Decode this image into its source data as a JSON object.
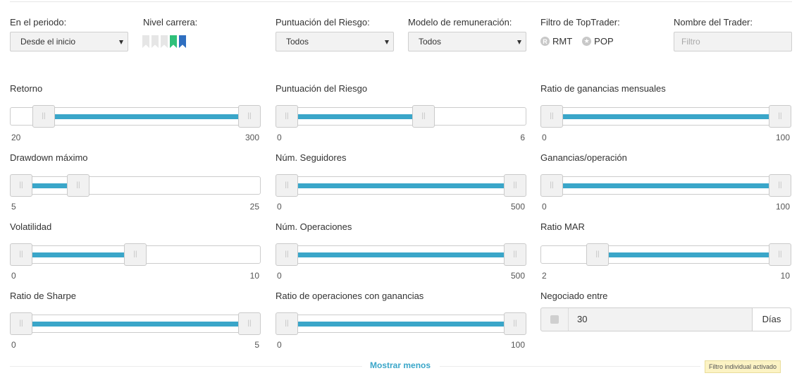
{
  "filters": {
    "period": {
      "label": "En el periodo:",
      "value": "Desde el inicio"
    },
    "career": {
      "label": "Nivel carrera:",
      "colors": [
        "#e6e6e6",
        "#e6e6e6",
        "#e6e6e6",
        "#2fc07a",
        "#2f6fc0"
      ]
    },
    "risk_score": {
      "label": "Puntuación del Riesgo:",
      "value": "Todos"
    },
    "remuneration": {
      "label": "Modelo de remuneración:",
      "value": "Todos"
    },
    "toptrader": {
      "label": "Filtro de TopTrader:",
      "options": [
        {
          "icon": "R",
          "label": "RMT"
        },
        {
          "icon": "★",
          "label": "POP"
        }
      ]
    },
    "trader_name": {
      "label": "Nombre del Trader:",
      "placeholder": "Filtro"
    }
  },
  "sliders": [
    {
      "label": "Retorno",
      "min": "20",
      "max": "300",
      "low": 0.1,
      "high": 1.0
    },
    {
      "label": "Puntuación del Riesgo",
      "min": "0",
      "max": "6",
      "low": 0.0,
      "high": 0.6
    },
    {
      "label": "Ratio de ganancias mensuales",
      "min": "0",
      "max": "100",
      "low": 0.0,
      "high": 1.0
    },
    {
      "label": "Drawdown máximo",
      "min": "5",
      "max": "25",
      "low": 0.0,
      "high": 0.25
    },
    {
      "label": "Núm. Seguidores",
      "min": "0",
      "max": "500",
      "low": 0.0,
      "high": 1.0
    },
    {
      "label": "Ganancias/operación",
      "min": "0",
      "max": "100",
      "low": 0.0,
      "high": 1.0
    },
    {
      "label": "Volatilidad",
      "min": "0",
      "max": "10",
      "low": 0.0,
      "high": 0.5
    },
    {
      "label": "Núm. Operaciones",
      "min": "0",
      "max": "500",
      "low": 0.0,
      "high": 1.0
    },
    {
      "label": "Ratio MAR",
      "min": "2",
      "max": "10",
      "low": 0.2,
      "high": 1.0
    },
    {
      "label": "Ratio de Sharpe",
      "min": "0",
      "max": "5",
      "low": 0.0,
      "high": 1.0
    },
    {
      "label": "Ratio de operaciones con ganancias",
      "min": "0",
      "max": "100",
      "low": 0.0,
      "high": 1.0
    }
  ],
  "traded_between": {
    "label": "Negociado entre",
    "value": "30",
    "unit": "Días"
  },
  "footer": {
    "show_less": "Mostrar menos",
    "tooltip": "Filtro individual activado"
  }
}
